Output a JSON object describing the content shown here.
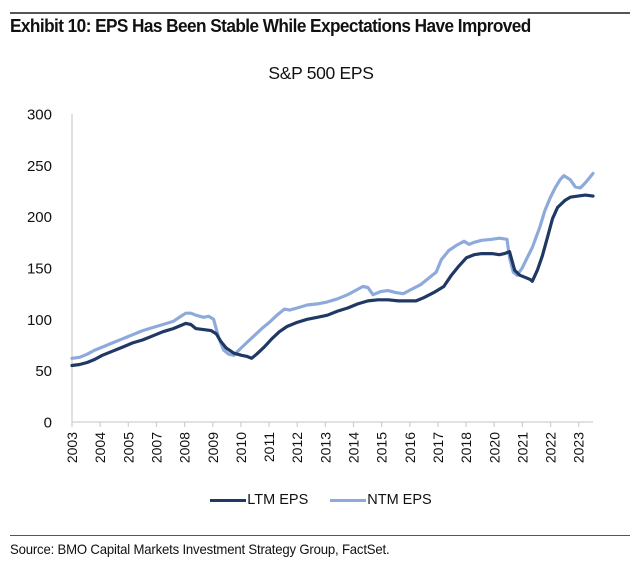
{
  "header": {
    "exhibit_title": "Exhibit 10: EPS Has Been Stable While Expectations Have Improved"
  },
  "footer": {
    "source": "Source: BMO Capital Markets Investment Strategy Group, FactSet."
  },
  "chart_data": {
    "type": "line",
    "title": "S&P 500 EPS",
    "xlabel": "",
    "ylabel": "",
    "ylim": [
      0,
      300
    ],
    "yticks": [
      0,
      50,
      100,
      150,
      200,
      250,
      300
    ],
    "xlim": [
      2003.0,
      2023.6
    ],
    "xtick_labels": [
      "2003",
      "2004",
      "2005",
      "2007",
      "2008",
      "2009",
      "2010",
      "2011",
      "2012",
      "2013",
      "2014",
      "2015",
      "2016",
      "2017",
      "2018",
      "2020",
      "2021",
      "2022",
      "2023"
    ],
    "grid": false,
    "legend_position": "bottom",
    "series": [
      {
        "name": "LTM EPS",
        "color": "#1f3864",
        "points": [
          [
            2003.0,
            55
          ],
          [
            2003.3,
            56
          ],
          [
            2003.6,
            58
          ],
          [
            2003.9,
            61
          ],
          [
            2004.2,
            65
          ],
          [
            2004.6,
            69
          ],
          [
            2005.0,
            73
          ],
          [
            2005.4,
            77
          ],
          [
            2005.8,
            80
          ],
          [
            2006.2,
            84
          ],
          [
            2006.6,
            88
          ],
          [
            2007.0,
            91
          ],
          [
            2007.3,
            94
          ],
          [
            2007.5,
            96
          ],
          [
            2007.7,
            95
          ],
          [
            2007.9,
            91
          ],
          [
            2008.2,
            90
          ],
          [
            2008.5,
            89
          ],
          [
            2008.7,
            86
          ],
          [
            2008.9,
            78
          ],
          [
            2009.1,
            72
          ],
          [
            2009.4,
            67
          ],
          [
            2009.7,
            65
          ],
          [
            2009.9,
            64
          ],
          [
            2010.1,
            62
          ],
          [
            2010.3,
            66
          ],
          [
            2010.6,
            73
          ],
          [
            2010.9,
            81
          ],
          [
            2011.2,
            88
          ],
          [
            2011.5,
            93
          ],
          [
            2011.9,
            97
          ],
          [
            2012.3,
            100
          ],
          [
            2012.7,
            102
          ],
          [
            2013.1,
            104
          ],
          [
            2013.5,
            108
          ],
          [
            2013.9,
            111
          ],
          [
            2014.3,
            115
          ],
          [
            2014.7,
            118
          ],
          [
            2015.1,
            119
          ],
          [
            2015.5,
            119
          ],
          [
            2015.9,
            118
          ],
          [
            2016.3,
            118
          ],
          [
            2016.6,
            118
          ],
          [
            2016.9,
            121
          ],
          [
            2017.3,
            126
          ],
          [
            2017.7,
            132
          ],
          [
            2018.0,
            143
          ],
          [
            2018.3,
            152
          ],
          [
            2018.6,
            160
          ],
          [
            2018.9,
            163
          ],
          [
            2019.2,
            164
          ],
          [
            2019.6,
            164
          ],
          [
            2019.9,
            163
          ],
          [
            2020.1,
            164
          ],
          [
            2020.3,
            166
          ],
          [
            2020.5,
            148
          ],
          [
            2020.7,
            143
          ],
          [
            2020.9,
            141
          ],
          [
            2021.1,
            139
          ],
          [
            2021.2,
            137
          ],
          [
            2021.4,
            148
          ],
          [
            2021.6,
            162
          ],
          [
            2021.8,
            180
          ],
          [
            2022.0,
            198
          ],
          [
            2022.2,
            209
          ],
          [
            2022.5,
            216
          ],
          [
            2022.7,
            219
          ],
          [
            2023.0,
            220
          ],
          [
            2023.3,
            221
          ],
          [
            2023.6,
            220
          ]
        ]
      },
      {
        "name": "NTM EPS",
        "color": "#8eaadb",
        "points": [
          [
            2003.0,
            62
          ],
          [
            2003.3,
            63
          ],
          [
            2003.6,
            66
          ],
          [
            2003.9,
            70
          ],
          [
            2004.2,
            73
          ],
          [
            2004.6,
            77
          ],
          [
            2005.0,
            81
          ],
          [
            2005.4,
            85
          ],
          [
            2005.8,
            89
          ],
          [
            2006.2,
            92
          ],
          [
            2006.6,
            95
          ],
          [
            2007.0,
            98
          ],
          [
            2007.3,
            103
          ],
          [
            2007.5,
            106
          ],
          [
            2007.7,
            106
          ],
          [
            2007.9,
            104
          ],
          [
            2008.2,
            102
          ],
          [
            2008.4,
            103
          ],
          [
            2008.6,
            100
          ],
          [
            2008.8,
            82
          ],
          [
            2009.0,
            70
          ],
          [
            2009.2,
            66
          ],
          [
            2009.4,
            65
          ],
          [
            2009.6,
            70
          ],
          [
            2009.9,
            77
          ],
          [
            2010.2,
            84
          ],
          [
            2010.5,
            91
          ],
          [
            2010.8,
            97
          ],
          [
            2011.1,
            104
          ],
          [
            2011.4,
            110
          ],
          [
            2011.6,
            109
          ],
          [
            2011.9,
            111
          ],
          [
            2012.3,
            114
          ],
          [
            2012.7,
            115
          ],
          [
            2013.1,
            117
          ],
          [
            2013.5,
            120
          ],
          [
            2013.9,
            124
          ],
          [
            2014.2,
            128
          ],
          [
            2014.5,
            132
          ],
          [
            2014.7,
            131
          ],
          [
            2014.9,
            124
          ],
          [
            2015.2,
            127
          ],
          [
            2015.5,
            128
          ],
          [
            2015.8,
            126
          ],
          [
            2016.1,
            125
          ],
          [
            2016.4,
            129
          ],
          [
            2016.8,
            134
          ],
          [
            2017.1,
            140
          ],
          [
            2017.4,
            146
          ],
          [
            2017.6,
            158
          ],
          [
            2017.9,
            167
          ],
          [
            2018.2,
            172
          ],
          [
            2018.5,
            176
          ],
          [
            2018.7,
            173
          ],
          [
            2018.9,
            175
          ],
          [
            2019.2,
            177
          ],
          [
            2019.6,
            178
          ],
          [
            2019.9,
            179
          ],
          [
            2020.2,
            178
          ],
          [
            2020.3,
            160
          ],
          [
            2020.45,
            146
          ],
          [
            2020.6,
            143
          ],
          [
            2020.8,
            150
          ],
          [
            2021.0,
            160
          ],
          [
            2021.2,
            170
          ],
          [
            2021.5,
            190
          ],
          [
            2021.7,
            206
          ],
          [
            2021.9,
            218
          ],
          [
            2022.1,
            228
          ],
          [
            2022.3,
            236
          ],
          [
            2022.45,
            240
          ],
          [
            2022.7,
            236
          ],
          [
            2022.9,
            229
          ],
          [
            2023.1,
            228
          ],
          [
            2023.3,
            233
          ],
          [
            2023.6,
            242
          ]
        ]
      }
    ]
  }
}
